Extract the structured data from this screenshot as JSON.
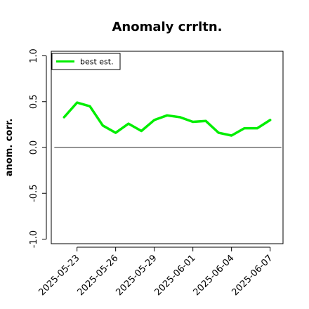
{
  "chart_data": {
    "type": "line",
    "title": "Anomaly crrltn.",
    "xlabel": "",
    "ylabel": "anom. corr.",
    "x": [
      "2025-05-22",
      "2025-05-23",
      "2025-05-24",
      "2025-05-25",
      "2025-05-26",
      "2025-05-27",
      "2025-05-28",
      "2025-05-29",
      "2025-05-30",
      "2025-05-31",
      "2025-06-01",
      "2025-06-02",
      "2025-06-03",
      "2025-06-04",
      "2025-06-05",
      "2025-06-06",
      "2025-06-07"
    ],
    "xticks": [
      "2025-05-23",
      "2025-05-26",
      "2025-05-29",
      "2025-06-01",
      "2025-06-04",
      "2025-06-07"
    ],
    "series": [
      {
        "name": "best est.",
        "color": "#00ee00",
        "values": [
          0.33,
          0.49,
          0.45,
          0.24,
          0.16,
          0.26,
          0.18,
          0.3,
          0.35,
          0.33,
          0.28,
          0.29,
          0.16,
          0.13,
          0.21,
          0.21,
          0.3
        ]
      }
    ],
    "reference_line": {
      "y": 0.0,
      "color": "#555555"
    },
    "ylim": [
      -1.05,
      1.05
    ],
    "yticks": [
      "-1.0",
      "-0.5",
      "0.0",
      "0.5",
      "1.0"
    ],
    "xlim": [
      "2025-05-21",
      "2025-06-08"
    ],
    "grid": false,
    "legend_position": "top-left"
  }
}
